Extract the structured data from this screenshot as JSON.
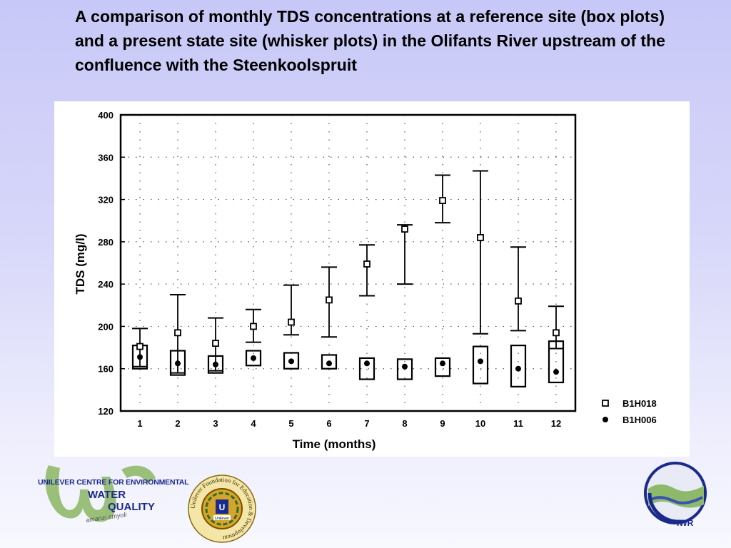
{
  "slide": {
    "title": "A comparison of monthly TDS concentrations at a reference site (box plots) and a present state site (whisker plots) in the Olifants River upstream of the confluence with the Steenkoolspruit"
  },
  "chart_data": {
    "type": "box-whisker",
    "xlabel": "Time (months)",
    "ylabel": "TDS (mg/l)",
    "ylim": [
      120,
      400
    ],
    "yticks": [
      120,
      160,
      200,
      240,
      280,
      320,
      360,
      400
    ],
    "categories": [
      "1",
      "2",
      "3",
      "4",
      "5",
      "6",
      "7",
      "8",
      "9",
      "10",
      "11",
      "12"
    ],
    "grid": "dotted",
    "legend_position": "bottom-right",
    "series": [
      {
        "name": "B1H018",
        "marker": "open-square",
        "style": "whisker",
        "center": [
          181,
          194,
          184,
          200,
          204,
          225,
          259,
          292,
          319,
          284,
          224,
          194
        ],
        "low": [
          162,
          156,
          158,
          185,
          192,
          190,
          229,
          240,
          298,
          193,
          196,
          179
        ],
        "high": [
          198,
          230,
          208,
          216,
          239,
          256,
          277,
          296,
          343,
          347,
          275,
          219
        ]
      },
      {
        "name": "B1H006",
        "marker": "filled-circle",
        "style": "box",
        "center": [
          171,
          165,
          164,
          170,
          167,
          165,
          165,
          162,
          165,
          167,
          160,
          157
        ],
        "low": [
          160,
          154,
          156,
          163,
          160,
          160,
          150,
          150,
          153,
          146,
          143,
          147
        ],
        "high": [
          182,
          177,
          172,
          177,
          175,
          173,
          170,
          169,
          170,
          181,
          182,
          186
        ]
      }
    ]
  },
  "logos": {
    "ucewq_line1": "UNILEVER CENTRE FOR ENVIRONMENTAL",
    "ucewq_water": "WATER",
    "ucewq_quality": "QUALITY",
    "ucewq_sub": "amanzi amyoli",
    "unilever_ring": "Unilever Foundation for Education & Development",
    "unilever_badge": "Unilever",
    "iwr": "IWR"
  },
  "colors": {
    "background": "#d0d0f8",
    "logo_blue": "#1a2a8a",
    "logo_green": "#8fb96a"
  }
}
